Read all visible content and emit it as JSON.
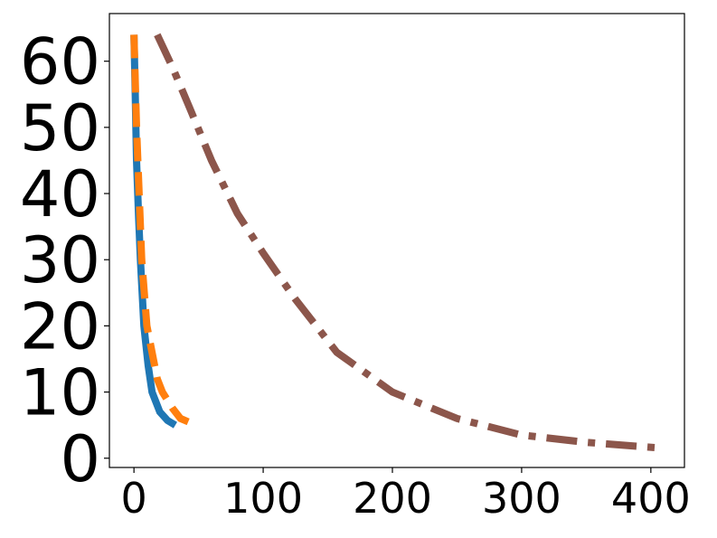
{
  "chart_data": {
    "type": "line",
    "xlim": [
      -19,
      426
    ],
    "ylim": [
      -1.4,
      67.2
    ],
    "xticks": [
      0,
      100,
      200,
      300,
      400
    ],
    "yticks": [
      0,
      10,
      20,
      30,
      40,
      50,
      60
    ],
    "series": [
      {
        "color": "#1f77b4",
        "style": "solid",
        "x": [
          0,
          1,
          2,
          3.5,
          5,
          7.7,
          11,
          14,
          20,
          26,
          32
        ],
        "values": [
          64,
          55,
          45,
          37,
          30,
          20,
          14,
          10,
          7,
          5.7,
          5
        ]
      },
      {
        "color": "#ff7f0e",
        "style": "dashed",
        "x": [
          0,
          2,
          4,
          6,
          10,
          18,
          22,
          30,
          36,
          42
        ],
        "values": [
          64,
          50,
          40,
          30,
          20,
          12,
          10,
          7.5,
          6,
          5.5
        ]
      },
      {
        "color": "#8c564b",
        "style": "dashdot",
        "x": [
          18,
          30,
          43,
          60,
          80,
          100,
          125,
          157,
          200,
          250,
          300,
          350,
          403
        ],
        "values": [
          64,
          59,
          53,
          45,
          37,
          31,
          24,
          16,
          10,
          6,
          3.5,
          2.4,
          1.6
        ]
      }
    ]
  }
}
